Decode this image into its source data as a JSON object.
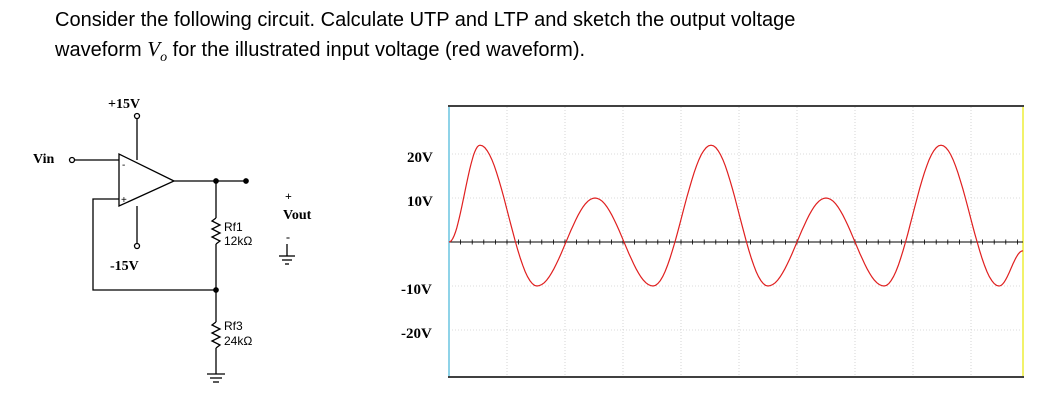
{
  "question": {
    "line1": "Consider the following circuit. Calculate UTP and LTP and sketch the output voltage",
    "line2_before": "waveform ",
    "vo_main": "V",
    "vo_sub": "o",
    "line2_after": " for the illustrated input voltage (red waveform)."
  },
  "circuit": {
    "supply_pos": "+15V",
    "supply_neg": "-15V",
    "vin_label": "Vin",
    "vout_label": "Vout",
    "vout_plus": "+",
    "vout_minus": "-",
    "opamp_minus": "-",
    "opamp_plus": "+",
    "rf1_name": "Rf1",
    "rf1_value": "12kΩ",
    "rf3_name": "Rf3",
    "rf3_value": "24kΩ"
  },
  "chart_data": {
    "type": "line",
    "title": "",
    "xlabel": "",
    "ylabel": "",
    "yticks": [
      "20V",
      "10V",
      "-10V",
      "-20V"
    ],
    "ytick_values": [
      20,
      10,
      -10,
      -20
    ],
    "series": [
      {
        "color": "#e02020",
        "description_peaks": [
          22,
          10,
          22,
          10,
          22
        ],
        "description_troughs": [
          -10,
          -10,
          -10
        ]
      }
    ],
    "colors": {
      "waveform": "#e02020",
      "axis": "#000000",
      "grid": "#b8b8b8",
      "left_border": "#8fd3e8",
      "right_border": "#f2f26a"
    }
  }
}
